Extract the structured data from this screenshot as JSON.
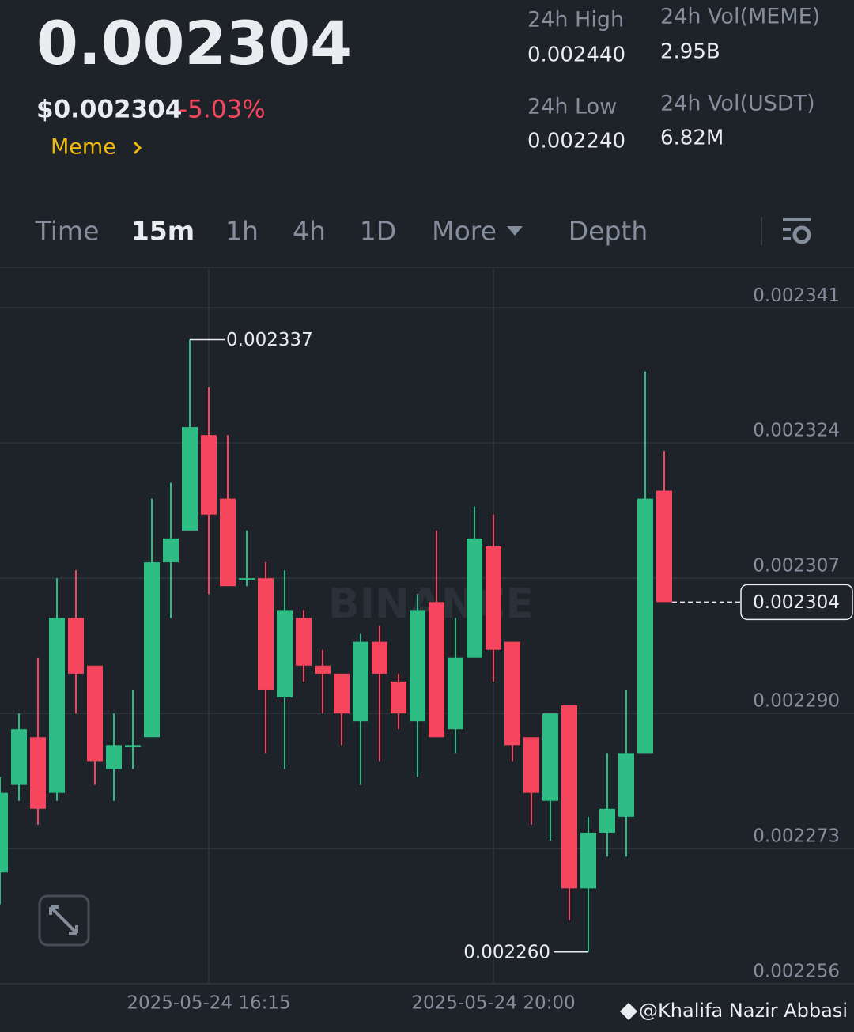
{
  "header": {
    "price": "0.002304",
    "usd_price": "$0.002304",
    "change": "-5.03%",
    "tag": "Meme",
    "stats": [
      {
        "label": "24h High",
        "value": "0.002440"
      },
      {
        "label": "24h Low",
        "value": "0.002240"
      },
      {
        "label": "24h Vol(MEME)",
        "value": "2.95B"
      },
      {
        "label": "24h Vol(USDT)",
        "value": "6.82M"
      }
    ]
  },
  "tabs": {
    "items": [
      "Time",
      "15m",
      "1h",
      "4h",
      "1D",
      "More",
      "Depth"
    ],
    "active": "15m"
  },
  "chart_data": {
    "type": "candlestick",
    "watermark": "BINANCE",
    "categories": [
      null,
      null,
      null,
      null,
      null,
      null,
      null,
      null,
      null,
      null,
      null,
      "2025-05-24 16:15",
      null,
      null,
      null,
      null,
      null,
      null,
      null,
      null,
      null,
      null,
      null,
      null,
      null,
      null,
      "2025-05-24 20:00",
      null,
      null,
      null,
      null,
      null,
      null,
      null,
      null,
      null
    ],
    "open": [
      0.00227,
      0.002281,
      0.002287,
      0.00228,
      0.002302,
      0.002296,
      0.002283,
      0.002286,
      0.002287,
      0.002309,
      0.002313,
      0.002325,
      0.002317,
      0.002307,
      0.002307,
      0.002292,
      0.002302,
      0.002296,
      0.002295,
      0.002289,
      0.002299,
      0.002294,
      0.002289,
      0.002304,
      0.002288,
      0.002297,
      0.002311,
      0.002299,
      0.002287,
      0.002279,
      0.002291,
      0.002268,
      0.002275,
      0.002277,
      0.002285,
      0.002318
    ],
    "high": [
      0.002282,
      0.00229,
      0.002297,
      0.002307,
      0.002308,
      0.002296,
      0.00229,
      0.002293,
      0.002317,
      0.002319,
      0.002337,
      0.002331,
      0.002325,
      0.002313,
      0.002309,
      0.002308,
      0.002303,
      0.002298,
      0.002295,
      0.0023,
      0.002301,
      0.002295,
      0.002305,
      0.002313,
      0.002302,
      0.002316,
      0.002315,
      0.002299,
      0.002287,
      0.00229,
      0.002291,
      0.002277,
      0.002285,
      0.002293,
      0.002333,
      0.002323
    ],
    "low": [
      0.002266,
      0.002279,
      0.002276,
      0.002279,
      0.00229,
      0.002281,
      0.002279,
      0.002283,
      0.002287,
      0.002302,
      0.002313,
      0.002305,
      0.002306,
      0.002306,
      0.002285,
      0.002283,
      0.002294,
      0.00229,
      0.002286,
      0.002281,
      0.002284,
      0.002288,
      0.002282,
      0.002287,
      0.002285,
      0.002297,
      0.002294,
      0.002284,
      0.002276,
      0.002274,
      0.002264,
      0.00226,
      0.002272,
      0.002272,
      0.002285,
      0.002304
    ],
    "close": [
      0.00228,
      0.002288,
      0.002278,
      0.002302,
      0.002295,
      0.002284,
      0.002286,
      0.002286,
      0.002309,
      0.002312,
      0.002326,
      0.002315,
      0.002306,
      0.002307,
      0.002293,
      0.002303,
      0.002296,
      0.002295,
      0.00229,
      0.002299,
      0.002295,
      0.00229,
      0.002303,
      0.002287,
      0.002297,
      0.002312,
      0.002298,
      0.002286,
      0.00228,
      0.00229,
      0.002268,
      0.002275,
      0.002278,
      0.002285,
      0.002317,
      0.002304
    ],
    "up_color": "#2ebd85",
    "down_color": "#f6465d",
    "ylim": [
      0.002256,
      0.0023461
    ],
    "yticks": [
      0.002341,
      0.002324,
      0.002307,
      {
        "value": 0.00229,
        "label": "0.002290"
      },
      0.002273,
      0.002256
    ],
    "grid": true,
    "max_label": "0.002337",
    "min_label": "0.002260",
    "last_label": "0.002304"
  },
  "footer": {
    "credit": "@Khalifa Nazir Abbasi"
  }
}
